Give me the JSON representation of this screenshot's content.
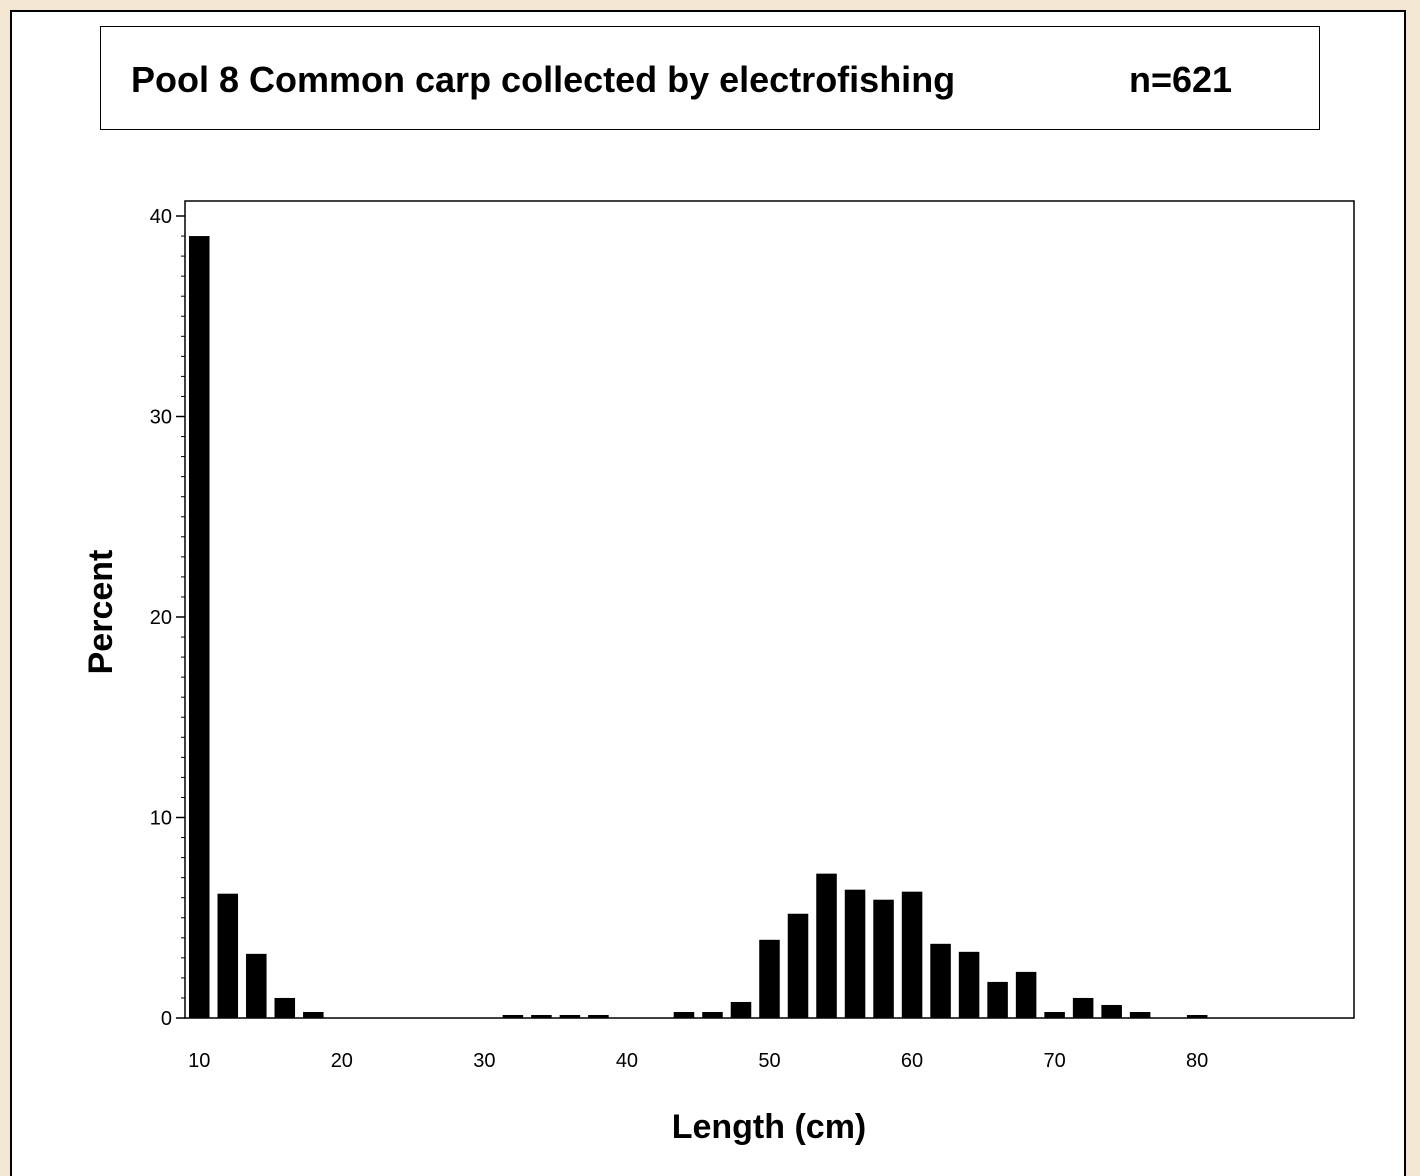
{
  "chart_data": {
    "type": "bar",
    "title": "Pool 8 Common carp collected by electrofishing",
    "subtitle": "n=621",
    "xlabel": "Length (cm)",
    "ylabel": "Percent",
    "xlim": [
      9,
      91
    ],
    "ylim": [
      0,
      40
    ],
    "xticks": [
      10,
      20,
      30,
      40,
      50,
      60,
      70,
      80
    ],
    "yticks": [
      0,
      10,
      20,
      30,
      40
    ],
    "bin_width": 2,
    "x": [
      10,
      12,
      14,
      16,
      18,
      20,
      22,
      24,
      26,
      28,
      30,
      32,
      34,
      36,
      38,
      40,
      42,
      44,
      46,
      48,
      50,
      52,
      54,
      56,
      58,
      60,
      62,
      64,
      66,
      68,
      70,
      72,
      74,
      76,
      78,
      80
    ],
    "values": [
      39.0,
      6.2,
      3.2,
      1.0,
      0.3,
      0,
      0,
      0,
      0,
      0,
      0,
      0.15,
      0.15,
      0.15,
      0.15,
      0,
      0,
      0.3,
      0.3,
      0.8,
      3.9,
      5.2,
      7.2,
      6.4,
      5.9,
      6.3,
      3.7,
      3.3,
      1.8,
      2.3,
      0.3,
      1.0,
      0.65,
      0.3,
      0,
      0.15
    ],
    "grid": false,
    "bar_color": "#000000"
  }
}
